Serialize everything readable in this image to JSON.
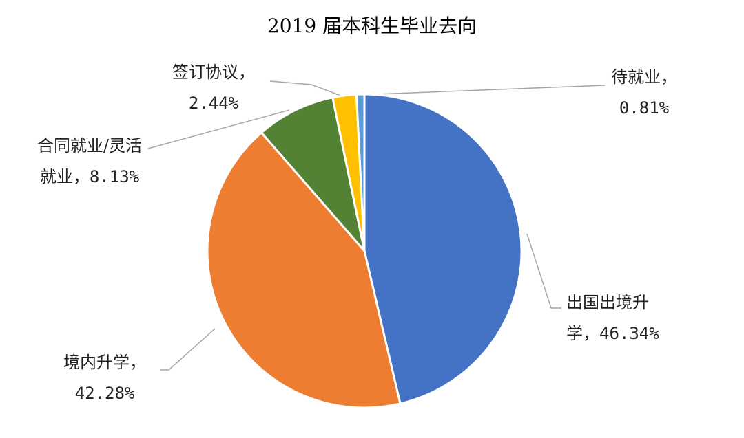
{
  "chart_data": {
    "type": "pie",
    "title": "2019 届本科生毕业去向",
    "categories": [
      "出国出境升学，",
      "境内升学，",
      "合同就业/灵活就业，",
      "签订协议，",
      "待就业，"
    ],
    "values": [
      46.34,
      42.28,
      8.13,
      2.44,
      0.81
    ],
    "value_labels": [
      "46.34%",
      "42.28%",
      "8.13%",
      "2.44%",
      "0.81%"
    ],
    "colors": [
      "#4472c4",
      "#ed7d31",
      "#548235",
      "#ffc000",
      "#5b9bd5"
    ]
  }
}
